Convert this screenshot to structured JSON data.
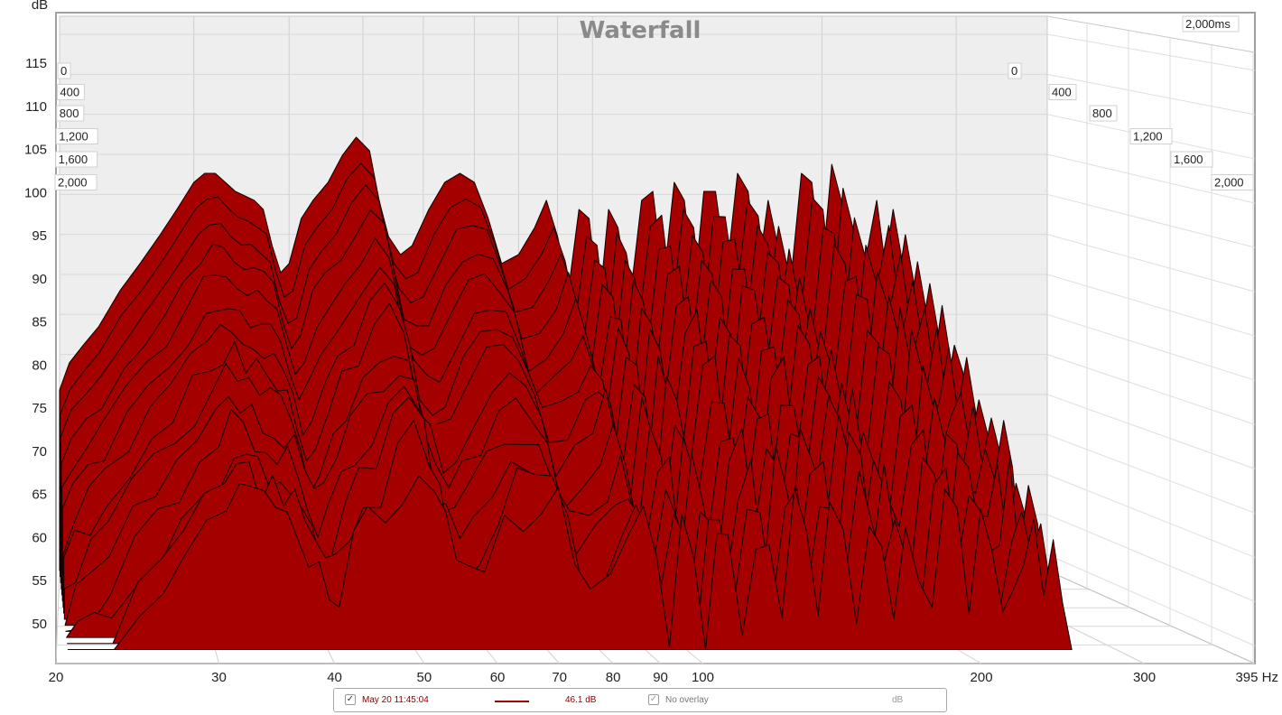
{
  "chart_data": {
    "type": "area",
    "title": "Waterfall",
    "ylabel": "dB",
    "xunit": "Hz",
    "xscale": "log",
    "xlim": [
      20,
      395
    ],
    "ylim": [
      48,
      119
    ],
    "x_ticks": [
      20,
      30,
      40,
      50,
      60,
      70,
      80,
      90,
      100,
      200,
      300
    ],
    "x_tick_labels": [
      "20",
      "30",
      "40",
      "50",
      "60",
      "70",
      "80",
      "90",
      "100",
      "200",
      "300"
    ],
    "x_end_label": "395 Hz",
    "y_ticks": [
      50,
      55,
      60,
      65,
      70,
      75,
      80,
      85,
      90,
      95,
      100,
      105,
      110,
      115
    ],
    "time_unit": "ms",
    "time_end_label": "2,000ms",
    "time_slices_ms": [
      0,
      400,
      800,
      1200,
      1600,
      2000
    ],
    "time_slice_labels": [
      "0",
      "400",
      "800",
      "1,200",
      "1,600",
      "2,000"
    ],
    "fill_color": "#a50000",
    "outline_color": "#1a0000",
    "back_slice": {
      "time_ms": 0,
      "x": [
        20,
        20.6,
        21.5,
        22.5,
        24,
        25.5,
        27,
        28.5,
        30,
        31,
        32,
        33,
        34,
        35,
        36,
        37,
        38,
        39,
        40,
        41.5,
        43,
        45,
        47,
        49,
        51,
        52.5,
        54,
        56,
        58,
        61,
        64,
        67,
        70,
        73,
        76,
        80,
        84,
        87,
        90,
        93,
        96,
        99,
        102,
        105,
        108,
        112,
        116,
        120,
        124,
        128,
        132,
        136,
        140,
        145,
        150,
        155,
        160,
        165,
        170,
        176,
        182,
        188,
        194,
        200,
        206,
        212,
        218,
        224,
        230,
        236,
        242,
        248,
        254,
        260
      ],
      "db": [
        71,
        74,
        76,
        78,
        82,
        85,
        88,
        91,
        94,
        95,
        95,
        94,
        93,
        92.5,
        92,
        91,
        87,
        84,
        85,
        90,
        92,
        94,
        97,
        99,
        97.5,
        92,
        88,
        86,
        87,
        91,
        94,
        95,
        94,
        90,
        85,
        86,
        89,
        92,
        88,
        82,
        91,
        90,
        80,
        91,
        89,
        81,
        92,
        93,
        83,
        94,
        92,
        82,
        93,
        93,
        84,
        95,
        93,
        84,
        92,
        86,
        83,
        95,
        94,
        84,
        96,
        92,
        85,
        84,
        87,
        92,
        85,
        91,
        86,
        78
      ]
    },
    "annotations": {
      "legend_entry": "May 20 11:45:04",
      "legend_value": "46.1 dB",
      "overlay": "No overlay",
      "overlay_unit": "dB"
    }
  },
  "legend": {
    "measurement_label": "May 20 11:45:04",
    "measurement_checked": true,
    "value": "46.1 dB",
    "overlay_label": "No overlay",
    "overlay_checked": true,
    "unit": "dB",
    "color": "#9b0000"
  }
}
